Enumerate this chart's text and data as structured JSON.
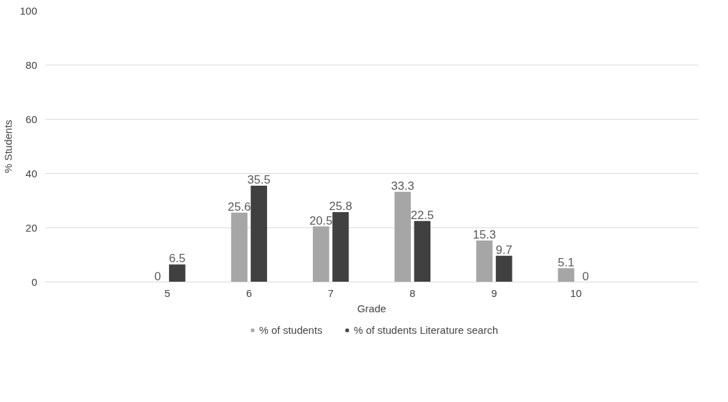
{
  "chart_data": {
    "type": "bar",
    "xlabel": "Grade",
    "ylabel": "% Students",
    "categories": [
      null,
      "5",
      "6",
      "7",
      "8",
      "9",
      "10",
      null
    ],
    "series": [
      {
        "name": "% of students",
        "color": "#a6a6a6",
        "values": [
          null,
          0,
          25.6,
          20.5,
          33.3,
          15.3,
          5.1,
          null
        ]
      },
      {
        "name": "% of students Literature search",
        "color": "#404040",
        "values": [
          null,
          6.5,
          35.5,
          25.8,
          22.5,
          9.7,
          0,
          null
        ]
      }
    ],
    "ylim": [
      0,
      100
    ],
    "yticks": [
      0,
      20,
      40,
      60,
      80,
      100
    ],
    "grid": "y",
    "legend": "bottom",
    "data_labels": true
  }
}
